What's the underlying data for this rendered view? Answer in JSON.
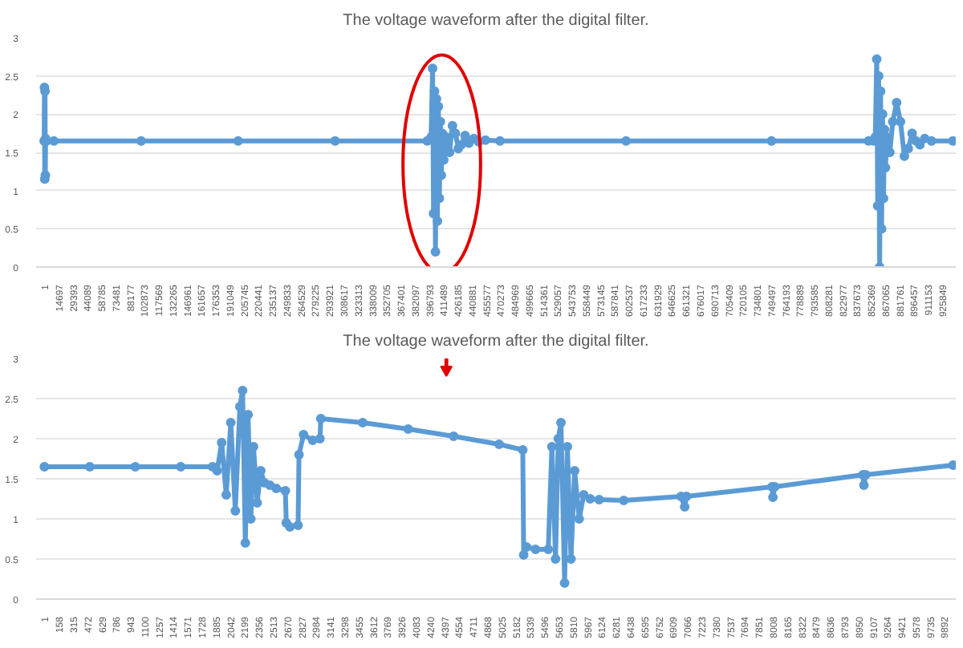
{
  "chart_data": [
    {
      "type": "line",
      "title": "The voltage waveform after the digital filter.",
      "marker": "circle",
      "grid": "y",
      "ylim": [
        0,
        3
      ],
      "yticks": [
        0,
        0.5,
        1,
        1.5,
        2,
        2.5,
        3
      ],
      "xlim": [
        -8300,
        940000
      ],
      "xticks": [
        1,
        14697,
        29393,
        44089,
        58785,
        73481,
        88177,
        102873,
        117569,
        132265,
        146961,
        161657,
        176353,
        191049,
        205745,
        220441,
        235137,
        249833,
        264529,
        279225,
        293921,
        308617,
        323313,
        338009,
        352705,
        367401,
        382097,
        396793,
        411489,
        426185,
        440881,
        455577,
        470273,
        484969,
        499665,
        514361,
        529057,
        543753,
        558449,
        573145,
        587841,
        602537,
        617233,
        631929,
        646625,
        661321,
        676017,
        690713,
        705409,
        720105,
        734801,
        749497,
        764193,
        778889,
        793585,
        808281,
        822977,
        837673,
        852369,
        867065,
        881761,
        896457,
        911153,
        925849
      ],
      "series": [
        {
          "color": "#5b9bd5",
          "x": [
            1,
            300,
            600,
            900,
            1200,
            1500,
            2500,
            10000,
            100000,
            200000,
            300000,
            395000,
            399000,
            400500,
            401500,
            402500,
            403500,
            404500,
            405500,
            406500,
            407500,
            408500,
            409500,
            410500,
            412000,
            415000,
            418000,
            421000,
            424000,
            427000,
            430000,
            434000,
            438000,
            443000,
            448000,
            455000,
            470000,
            600000,
            750000,
            850000,
            855000,
            857000,
            858500,
            859500,
            860500,
            861500,
            862500,
            863500,
            864500,
            865500,
            866500,
            867500,
            869000,
            872000,
            875000,
            879000,
            883000,
            887000,
            891000,
            895000,
            899000,
            903000,
            908000,
            915000,
            937000
          ],
          "values": [
            1.65,
            2.35,
            1.15,
            2.3,
            1.2,
            1.68,
            1.65,
            1.65,
            1.65,
            1.65,
            1.65,
            1.65,
            1.7,
            2.6,
            0.7,
            2.3,
            0.2,
            2.2,
            0.6,
            2.1,
            0.9,
            1.9,
            1.2,
            1.75,
            1.4,
            1.7,
            1.5,
            1.85,
            1.75,
            1.55,
            1.6,
            1.72,
            1.62,
            1.68,
            1.64,
            1.66,
            1.65,
            1.65,
            1.65,
            1.65,
            1.65,
            1.7,
            2.72,
            0.8,
            2.5,
            0.0,
            2.3,
            0.5,
            2.0,
            0.9,
            1.8,
            1.3,
            1.7,
            1.5,
            1.9,
            2.15,
            1.9,
            1.45,
            1.55,
            1.75,
            1.65,
            1.6,
            1.68,
            1.65,
            1.65
          ]
        }
      ]
    },
    {
      "type": "line",
      "title": "The voltage waveform after the digital filter.",
      "marker": "circle",
      "grid": "y",
      "ylim": [
        0,
        3
      ],
      "yticks": [
        0,
        0.5,
        1,
        1.5,
        2,
        2.5,
        3
      ],
      "xlim": [
        -90,
        10020
      ],
      "xticks": [
        1,
        158,
        315,
        472,
        629,
        786,
        943,
        1100,
        1257,
        1414,
        1571,
        1728,
        1885,
        2042,
        2199,
        2356,
        2513,
        2670,
        2827,
        2984,
        3141,
        3298,
        3455,
        3612,
        3769,
        3926,
        4083,
        4240,
        4397,
        4554,
        4711,
        4868,
        5025,
        5182,
        5339,
        5496,
        5653,
        5810,
        5967,
        6124,
        6281,
        6438,
        6595,
        6752,
        6909,
        7066,
        7223,
        7380,
        7537,
        7694,
        7851,
        8008,
        8165,
        8322,
        8479,
        8636,
        8793,
        8950,
        9107,
        9264,
        9421,
        9578,
        9735,
        9892
      ],
      "series": [
        {
          "color": "#5b9bd5",
          "x": [
            1,
            500,
            1000,
            1500,
            1850,
            1900,
            1950,
            2000,
            2050,
            2100,
            2150,
            2180,
            2210,
            2240,
            2270,
            2300,
            2340,
            2380,
            2420,
            2480,
            2550,
            2650,
            2660,
            2700,
            2790,
            2800,
            2850,
            2950,
            3030,
            3040,
            3500,
            4000,
            4500,
            5000,
            5260,
            5270,
            5300,
            5400,
            5540,
            5580,
            5620,
            5650,
            5680,
            5720,
            5750,
            5790,
            5830,
            5880,
            5930,
            6000,
            6100,
            6370,
            7000,
            7040,
            7060,
            8000,
            8010,
            8030,
            9000,
            9010,
            9030,
            9990
          ],
          "values": [
            1.65,
            1.65,
            1.65,
            1.65,
            1.65,
            1.6,
            1.95,
            1.3,
            2.2,
            1.1,
            2.4,
            2.6,
            0.7,
            2.3,
            1.0,
            1.9,
            1.2,
            1.6,
            1.45,
            1.42,
            1.38,
            1.35,
            0.95,
            0.9,
            0.92,
            1.8,
            2.05,
            1.98,
            2.0,
            2.25,
            2.2,
            2.12,
            2.03,
            1.93,
            1.86,
            0.55,
            0.65,
            0.62,
            0.62,
            1.9,
            0.5,
            2.0,
            2.2,
            0.2,
            1.9,
            0.5,
            1.6,
            1.0,
            1.3,
            1.25,
            1.24,
            1.23,
            1.28,
            1.15,
            1.28,
            1.4,
            1.27,
            1.4,
            1.55,
            1.42,
            1.55,
            1.67
          ]
        }
      ]
    }
  ]
}
